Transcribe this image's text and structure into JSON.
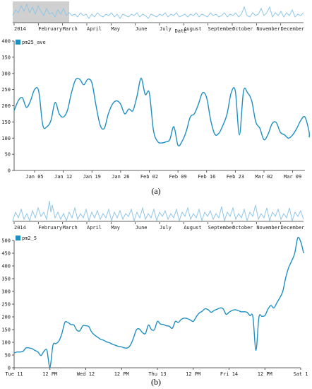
{
  "colors": {
    "line": "#1f8fc2",
    "context_line": "#8fc6e6",
    "brush": "#d0d0d0",
    "axis": "#333333"
  },
  "chart_data": [
    {
      "type": "line",
      "title": "",
      "caption": "(a)",
      "context": {
        "tick_labels": [
          "2014",
          "February",
          "March",
          "April",
          "May",
          "June",
          "July",
          "August",
          "September",
          "October",
          "November",
          "December"
        ],
        "axis_label": "Date"
      },
      "series": [
        {
          "name": "pm25_ave"
        }
      ],
      "ylim": [
        0,
        400
      ],
      "yticks": [
        0,
        50,
        100,
        150,
        200,
        250,
        300,
        350,
        400
      ],
      "xticks": [
        {
          "label": "Jan 05",
          "x": 5
        },
        {
          "label": "Jan 12",
          "x": 12
        },
        {
          "label": "Jan 19",
          "x": 19
        },
        {
          "label": "Jan 26",
          "x": 26
        },
        {
          "label": "Feb 02",
          "x": 33
        },
        {
          "label": "Feb 09",
          "x": 40
        },
        {
          "label": "Feb 16",
          "x": 47
        },
        {
          "label": "Feb 23",
          "x": 54
        },
        {
          "label": "Mar 02",
          "x": 61
        },
        {
          "label": "Mar 09",
          "x": 68
        }
      ],
      "xlim": [
        0,
        71
      ],
      "x_unit": "day of year 2014",
      "points": [
        [
          0,
          185
        ],
        [
          1,
          215
        ],
        [
          2,
          225
        ],
        [
          3,
          195
        ],
        [
          4,
          215
        ],
        [
          5,
          250
        ],
        [
          6,
          245
        ],
        [
          7,
          140
        ],
        [
          8,
          135
        ],
        [
          9,
          155
        ],
        [
          10,
          210
        ],
        [
          11,
          175
        ],
        [
          12,
          165
        ],
        [
          13,
          185
        ],
        [
          14,
          240
        ],
        [
          15,
          280
        ],
        [
          16,
          282
        ],
        [
          17,
          265
        ],
        [
          18,
          282
        ],
        [
          19,
          270
        ],
        [
          20,
          200
        ],
        [
          21,
          140
        ],
        [
          22,
          130
        ],
        [
          23,
          175
        ],
        [
          24,
          205
        ],
        [
          25,
          215
        ],
        [
          26,
          205
        ],
        [
          27,
          175
        ],
        [
          28,
          190
        ],
        [
          29,
          185
        ],
        [
          30,
          230
        ],
        [
          31,
          285
        ],
        [
          32,
          235
        ],
        [
          33,
          240
        ],
        [
          34,
          125
        ],
        [
          35,
          90
        ],
        [
          36,
          85
        ],
        [
          37,
          88
        ],
        [
          38,
          95
        ],
        [
          39,
          135
        ],
        [
          40,
          78
        ],
        [
          41,
          90
        ],
        [
          42,
          120
        ],
        [
          43,
          165
        ],
        [
          44,
          175
        ],
        [
          45,
          205
        ],
        [
          46,
          240
        ],
        [
          47,
          225
        ],
        [
          48,
          155
        ],
        [
          49,
          112
        ],
        [
          50,
          115
        ],
        [
          51,
          140
        ],
        [
          52,
          175
        ],
        [
          53,
          240
        ],
        [
          54,
          245
        ],
        [
          55,
          110
        ],
        [
          56,
          245
        ],
        [
          57,
          240
        ],
        [
          58,
          215
        ],
        [
          59,
          150
        ],
        [
          60,
          130
        ],
        [
          61,
          95
        ],
        [
          62,
          112
        ],
        [
          63,
          145
        ],
        [
          64,
          148
        ],
        [
          65,
          118
        ],
        [
          66,
          110
        ],
        [
          67,
          100
        ],
        [
          68,
          110
        ],
        [
          69,
          130
        ],
        [
          70,
          155
        ],
        [
          71,
          165
        ],
        [
          72,
          120
        ],
        [
          73,
          102
        ]
      ]
    },
    {
      "type": "line",
      "title": "",
      "caption": "(b)",
      "context": {
        "tick_labels": [
          "2014",
          "February",
          "March",
          "April",
          "May",
          "June",
          "July",
          "August",
          "September",
          "October",
          "November",
          "December"
        ]
      },
      "series": [
        {
          "name": "pm2_5"
        }
      ],
      "ylim": [
        0,
        500
      ],
      "yticks": [
        0,
        50,
        100,
        150,
        200,
        250,
        300,
        350,
        400,
        450,
        500
      ],
      "xticks": [
        {
          "label": "Tue 11",
          "x": 0
        },
        {
          "label": "12 PM",
          "x": 12
        },
        {
          "label": "Wed 12",
          "x": 24
        },
        {
          "label": "12 PM",
          "x": 36
        },
        {
          "label": "Thu 13",
          "x": 48
        },
        {
          "label": "12 PM",
          "x": 60
        },
        {
          "label": "Fri 14",
          "x": 72
        },
        {
          "label": "12 PM",
          "x": 84
        },
        {
          "label": "Sat 1",
          "x": 96
        }
      ],
      "xlim": [
        0,
        96
      ],
      "x_unit": "hours since Tue 11 00:00",
      "points": [
        [
          0,
          58
        ],
        [
          1,
          62
        ],
        [
          2,
          62
        ],
        [
          3,
          65
        ],
        [
          4,
          78
        ],
        [
          5,
          78
        ],
        [
          6,
          75
        ],
        [
          7,
          68
        ],
        [
          8,
          62
        ],
        [
          9,
          48
        ],
        [
          10,
          65
        ],
        [
          11,
          68
        ],
        [
          12,
          2
        ],
        [
          13,
          88
        ],
        [
          14,
          95
        ],
        [
          15,
          105
        ],
        [
          16,
          135
        ],
        [
          17,
          178
        ],
        [
          18,
          178
        ],
        [
          19,
          170
        ],
        [
          20,
          168
        ],
        [
          21,
          148
        ],
        [
          22,
          145
        ],
        [
          23,
          165
        ],
        [
          24,
          165
        ],
        [
          25,
          162
        ],
        [
          26,
          140
        ],
        [
          27,
          128
        ],
        [
          28,
          120
        ],
        [
          29,
          112
        ],
        [
          30,
          108
        ],
        [
          31,
          102
        ],
        [
          32,
          98
        ],
        [
          33,
          92
        ],
        [
          34,
          88
        ],
        [
          35,
          84
        ],
        [
          36,
          82
        ],
        [
          37,
          78
        ],
        [
          38,
          78
        ],
        [
          39,
          90
        ],
        [
          40,
          118
        ],
        [
          41,
          150
        ],
        [
          42,
          152
        ],
        [
          43,
          138
        ],
        [
          44,
          135
        ],
        [
          45,
          168
        ],
        [
          46,
          150
        ],
        [
          47,
          150
        ],
        [
          48,
          182
        ],
        [
          49,
          172
        ],
        [
          50,
          170
        ],
        [
          51,
          165
        ],
        [
          52,
          163
        ],
        [
          53,
          155
        ],
        [
          54,
          182
        ],
        [
          55,
          178
        ],
        [
          56,
          190
        ],
        [
          57,
          195
        ],
        [
          58,
          193
        ],
        [
          59,
          188
        ],
        [
          60,
          182
        ],
        [
          61,
          200
        ],
        [
          62,
          215
        ],
        [
          63,
          222
        ],
        [
          64,
          232
        ],
        [
          65,
          228
        ],
        [
          66,
          218
        ],
        [
          67,
          225
        ],
        [
          68,
          230
        ],
        [
          69,
          235
        ],
        [
          70,
          232
        ],
        [
          71,
          210
        ],
        [
          72,
          218
        ],
        [
          73,
          225
        ],
        [
          74,
          228
        ],
        [
          75,
          225
        ],
        [
          76,
          220
        ],
        [
          77,
          220
        ],
        [
          78,
          218
        ],
        [
          79,
          205
        ],
        [
          80,
          200
        ],
        [
          81,
          68
        ],
        [
          82,
          198
        ],
        [
          83,
          202
        ],
        [
          84,
          205
        ],
        [
          85,
          230
        ],
        [
          86,
          245
        ],
        [
          87,
          235
        ],
        [
          88,
          255
        ],
        [
          89,
          275
        ],
        [
          90,
          300
        ],
        [
          91,
          355
        ],
        [
          92,
          395
        ],
        [
          93,
          420
        ],
        [
          94,
          450
        ],
        [
          95,
          510
        ],
        [
          96,
          495
        ],
        [
          97,
          450
        ]
      ]
    }
  ]
}
